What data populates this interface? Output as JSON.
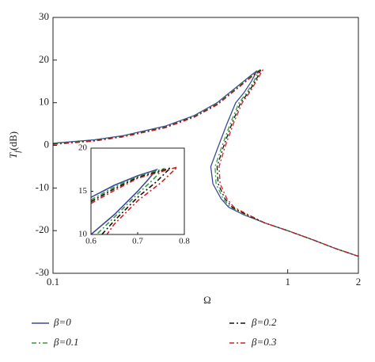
{
  "chart_data": [
    {
      "type": "line",
      "xlabel": "Ω",
      "ylabel": {
        "base": "T",
        "sub": "f",
        "unit": "(dB)"
      },
      "log_x": true,
      "xlim": [
        0.1,
        2
      ],
      "ylim": [
        -30,
        30
      ],
      "xticks": [
        0.1,
        1,
        2
      ],
      "yticks": [
        -30,
        -20,
        -10,
        0,
        10,
        20,
        30
      ],
      "legend": "bottom",
      "series": [
        {
          "name": "β=0",
          "color": "#3b4a9a",
          "dash": "none",
          "x": [
            0.1,
            0.15,
            0.2,
            0.3,
            0.4,
            0.5,
            0.6,
            0.7,
            0.74,
            0.7,
            0.65,
            0.6,
            0.55,
            0.5,
            0.47,
            0.48,
            0.52,
            0.56,
            0.65,
            0.8,
            1,
            1.3,
            1.6,
            2
          ],
          "values": [
            0.5,
            1.3,
            2.3,
            4.5,
            7,
            10,
            13.5,
            16.5,
            17.5,
            15,
            12.3,
            10,
            5,
            -1,
            -5,
            -9,
            -12.5,
            -14.5,
            -16.3,
            -18.2,
            -20,
            -22.3,
            -24.2,
            -26
          ]
        },
        {
          "name": "β=0.1",
          "color": "#3a9a3a",
          "dash": "6,3,2,3",
          "x": [
            0.1,
            0.15,
            0.2,
            0.3,
            0.4,
            0.5,
            0.6,
            0.7,
            0.755,
            0.72,
            0.67,
            0.62,
            0.57,
            0.52,
            0.49,
            0.495,
            0.53,
            0.57,
            0.66,
            0.8,
            1,
            1.3,
            1.6,
            2
          ],
          "values": [
            0.4,
            1.2,
            2.2,
            4.3,
            6.8,
            9.8,
            13.3,
            16.3,
            17.6,
            15.2,
            12.4,
            10,
            5.2,
            -0.8,
            -5,
            -9,
            -12.5,
            -14.5,
            -16.3,
            -18.2,
            -20,
            -22.3,
            -24.2,
            -26
          ]
        },
        {
          "name": "β=0.2",
          "color": "#111111",
          "dash": "6,3,2,3",
          "x": [
            0.1,
            0.15,
            0.2,
            0.3,
            0.4,
            0.5,
            0.6,
            0.7,
            0.77,
            0.73,
            0.68,
            0.63,
            0.58,
            0.53,
            0.5,
            0.505,
            0.54,
            0.58,
            0.67,
            0.8,
            1,
            1.3,
            1.6,
            2
          ],
          "values": [
            0.3,
            1.1,
            2.1,
            4.2,
            6.7,
            9.6,
            13.1,
            16.1,
            17.7,
            15.2,
            12.4,
            10,
            5.3,
            -0.6,
            -5,
            -9,
            -12.5,
            -14.5,
            -16.3,
            -18.2,
            -20,
            -22.3,
            -24.2,
            -26
          ]
        },
        {
          "name": "β=0.3",
          "color": "#d02020",
          "dash": "6,3,2,3",
          "x": [
            0.1,
            0.15,
            0.2,
            0.3,
            0.4,
            0.5,
            0.6,
            0.7,
            0.785,
            0.74,
            0.69,
            0.64,
            0.59,
            0.54,
            0.51,
            0.515,
            0.55,
            0.59,
            0.68,
            0.8,
            1,
            1.3,
            1.6,
            2
          ],
          "values": [
            0.2,
            1,
            2,
            4.1,
            6.6,
            9.5,
            13,
            16,
            17.8,
            15.3,
            12.5,
            10,
            5.4,
            -0.4,
            -5,
            -9,
            -12.5,
            -14.5,
            -16.3,
            -18.2,
            -20,
            -22.3,
            -24.2,
            -26
          ]
        }
      ]
    },
    {
      "type": "line",
      "xlim": [
        0.6,
        0.8
      ],
      "ylim": [
        10,
        20
      ],
      "xticks": [
        0.6,
        0.7,
        0.8
      ],
      "yticks": [
        10,
        15,
        20
      ],
      "series": [
        {
          "color": "#3b4a9a",
          "dash": "none",
          "x": [
            0.6,
            0.65,
            0.7,
            0.74,
            0.72,
            0.7,
            0.65,
            0.6
          ],
          "values": [
            14.3,
            15.7,
            16.8,
            17.5,
            16.2,
            15,
            12.3,
            10
          ]
        },
        {
          "color": "#3a9a3a",
          "dash": "6,3,2,3",
          "x": [
            0.6,
            0.65,
            0.7,
            0.755,
            0.73,
            0.7,
            0.65,
            0.61
          ],
          "values": [
            14,
            15.5,
            16.7,
            17.6,
            16.2,
            14.7,
            12,
            9.9
          ]
        },
        {
          "color": "#111111",
          "dash": "6,3,2,3",
          "x": [
            0.6,
            0.65,
            0.7,
            0.77,
            0.74,
            0.7,
            0.65,
            0.62
          ],
          "values": [
            13.8,
            15.3,
            16.6,
            17.7,
            16.1,
            14.3,
            11.6,
            9.8
          ]
        },
        {
          "color": "#d02020",
          "dash": "6,3,2,3",
          "x": [
            0.6,
            0.65,
            0.7,
            0.785,
            0.75,
            0.7,
            0.65,
            0.63
          ],
          "values": [
            13.6,
            15.1,
            16.5,
            17.8,
            16,
            13.9,
            11.2,
            9.7
          ]
        }
      ]
    }
  ]
}
